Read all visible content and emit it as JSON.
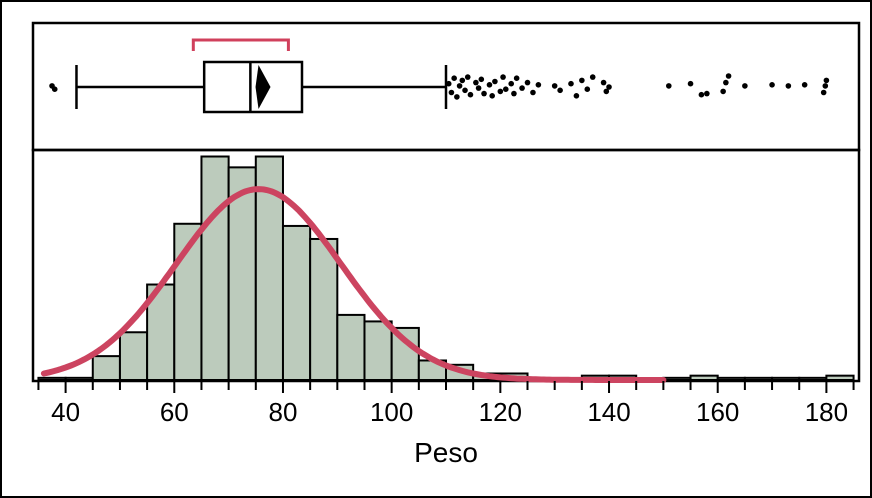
{
  "chart_data": {
    "type": "histogram",
    "xlabel": "Peso",
    "xlim": [
      34,
      186
    ],
    "x_ticks": [
      40,
      60,
      80,
      100,
      120,
      140,
      160,
      180
    ],
    "minor_tick_step": 5,
    "bin_width": 5,
    "bins": [
      {
        "x0": 35,
        "x1": 40,
        "count": 1
      },
      {
        "x0": 40,
        "x1": 45,
        "count": 1
      },
      {
        "x0": 45,
        "x1": 50,
        "count": 11
      },
      {
        "x0": 50,
        "x1": 55,
        "count": 22
      },
      {
        "x0": 55,
        "x1": 60,
        "count": 44
      },
      {
        "x0": 60,
        "x1": 65,
        "count": 72
      },
      {
        "x0": 65,
        "x1": 70,
        "count": 103
      },
      {
        "x0": 70,
        "x1": 75,
        "count": 98
      },
      {
        "x0": 75,
        "x1": 80,
        "count": 103
      },
      {
        "x0": 80,
        "x1": 85,
        "count": 71
      },
      {
        "x0": 85,
        "x1": 90,
        "count": 65
      },
      {
        "x0": 90,
        "x1": 95,
        "count": 30
      },
      {
        "x0": 95,
        "x1": 100,
        "count": 27
      },
      {
        "x0": 100,
        "x1": 105,
        "count": 24
      },
      {
        "x0": 105,
        "x1": 110,
        "count": 9
      },
      {
        "x0": 110,
        "x1": 115,
        "count": 7
      },
      {
        "x0": 115,
        "x1": 120,
        "count": 3
      },
      {
        "x0": 120,
        "x1": 125,
        "count": 3
      },
      {
        "x0": 125,
        "x1": 130,
        "count": 0
      },
      {
        "x0": 130,
        "x1": 135,
        "count": 0
      },
      {
        "x0": 135,
        "x1": 140,
        "count": 2
      },
      {
        "x0": 140,
        "x1": 145,
        "count": 2
      },
      {
        "x0": 145,
        "x1": 150,
        "count": 0
      },
      {
        "x0": 150,
        "x1": 155,
        "count": 1
      },
      {
        "x0": 155,
        "x1": 160,
        "count": 2
      },
      {
        "x0": 160,
        "x1": 165,
        "count": 1
      },
      {
        "x0": 165,
        "x1": 170,
        "count": 1
      },
      {
        "x0": 170,
        "x1": 175,
        "count": 1
      },
      {
        "x0": 175,
        "x1": 180,
        "count": 1
      },
      {
        "x0": 180,
        "x1": 185,
        "count": 2
      }
    ],
    "ylim": [
      0,
      106
    ],
    "normal_curve": {
      "mean": 75.5,
      "sd": 15.2,
      "peak": 88
    },
    "boxplot": {
      "whisker_low": 42,
      "q1": 65.5,
      "median": 74,
      "mean": 75.5,
      "q3": 83.5,
      "whisker_high": 110,
      "shortest_half": [
        63.5,
        81
      ],
      "outliers": [
        {
          "x": 37.5,
          "jitter": 0.1
        },
        {
          "x": 38,
          "jitter": -0.2
        },
        {
          "x": 110.5,
          "jitter": 0.3
        },
        {
          "x": 111,
          "jitter": -0.5
        },
        {
          "x": 111.5,
          "jitter": 0.8
        },
        {
          "x": 112,
          "jitter": -0.9
        },
        {
          "x": 112.5,
          "jitter": 0.1
        },
        {
          "x": 113,
          "jitter": 0.6
        },
        {
          "x": 113.5,
          "jitter": -0.3
        },
        {
          "x": 114,
          "jitter": 0.9
        },
        {
          "x": 114.5,
          "jitter": -0.7
        },
        {
          "x": 115.5,
          "jitter": 0.4
        },
        {
          "x": 116,
          "jitter": -0.1
        },
        {
          "x": 116.5,
          "jitter": 0.7
        },
        {
          "x": 117,
          "jitter": -0.6
        },
        {
          "x": 118,
          "jitter": 0.2
        },
        {
          "x": 118.5,
          "jitter": -0.8
        },
        {
          "x": 119,
          "jitter": 0.5
        },
        {
          "x": 120,
          "jitter": -0.4
        },
        {
          "x": 120.5,
          "jitter": 0.9
        },
        {
          "x": 121,
          "jitter": -0.2
        },
        {
          "x": 122,
          "jitter": 0.3
        },
        {
          "x": 122.5,
          "jitter": -0.6
        },
        {
          "x": 123,
          "jitter": 0.8
        },
        {
          "x": 124,
          "jitter": -0.1
        },
        {
          "x": 125,
          "jitter": 0.4
        },
        {
          "x": 126,
          "jitter": -0.5
        },
        {
          "x": 127,
          "jitter": 0.2
        },
        {
          "x": 130,
          "jitter": 0.1
        },
        {
          "x": 131,
          "jitter": -0.3
        },
        {
          "x": 133,
          "jitter": 0.3
        },
        {
          "x": 134,
          "jitter": -0.8
        },
        {
          "x": 135,
          "jitter": 0.6
        },
        {
          "x": 136,
          "jitter": -0.2
        },
        {
          "x": 137,
          "jitter": 0.9
        },
        {
          "x": 139,
          "jitter": 0.4
        },
        {
          "x": 139.5,
          "jitter": -0.4
        },
        {
          "x": 140,
          "jitter": 0.0
        },
        {
          "x": 151,
          "jitter": 0.1
        },
        {
          "x": 155,
          "jitter": 0.3
        },
        {
          "x": 157,
          "jitter": -0.7
        },
        {
          "x": 158,
          "jitter": -0.6
        },
        {
          "x": 161,
          "jitter": -0.4
        },
        {
          "x": 161.5,
          "jitter": 0.4
        },
        {
          "x": 162,
          "jitter": 1.0
        },
        {
          "x": 165,
          "jitter": 0.1
        },
        {
          "x": 170,
          "jitter": 0.2
        },
        {
          "x": 173,
          "jitter": 0.1
        },
        {
          "x": 176,
          "jitter": 0.2
        },
        {
          "x": 179.5,
          "jitter": -0.5
        },
        {
          "x": 179.8,
          "jitter": 0.1
        },
        {
          "x": 180,
          "jitter": 0.6
        }
      ]
    },
    "colors": {
      "bar_fill": "#bccbbc",
      "bar_stroke": "#000000",
      "curve": "#cc4460",
      "shortest_half": "#d0405c",
      "outlier": "#000000"
    }
  }
}
